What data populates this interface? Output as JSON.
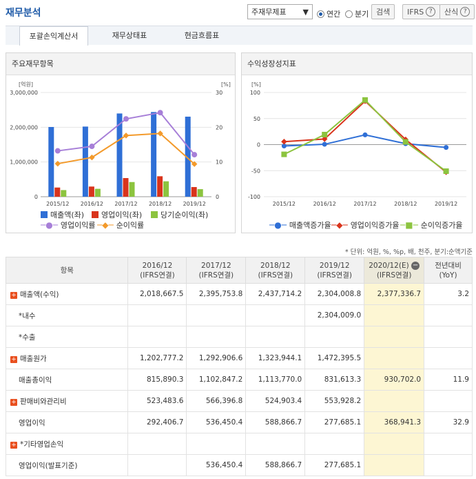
{
  "page_title": "재무분석",
  "controls": {
    "report_select": "주재무제표",
    "radio_annual": "연간",
    "radio_quarter": "분기",
    "search": "검색",
    "ifrs": "IFRS",
    "formula": "산식"
  },
  "tabs": [
    "포괄손익계산서",
    "재무상태표",
    "현금흐름표"
  ],
  "left_chart": {
    "title": "주요재무항목",
    "left_unit": "[억원]",
    "right_unit": "[%]",
    "legend": [
      "매출액(좌)",
      "영업이익(좌)",
      "당기순이익(좌)",
      "영업이익률",
      "순이익률"
    ]
  },
  "right_chart": {
    "title": "수익성장성지표",
    "unit": "[%]",
    "legend": [
      "매출액증가율",
      "영업이익증가율",
      "순이익증가율"
    ]
  },
  "chart_data": [
    {
      "type": "bar",
      "title": "주요재무항목",
      "categories": [
        "2015/12",
        "2016/12",
        "2017/12",
        "2018/12",
        "2019/12"
      ],
      "y_ticks": [
        "0",
        "1,000,000",
        "2,000,000",
        "3,000,000"
      ],
      "y2_ticks": [
        "0",
        "10",
        "20",
        "30"
      ],
      "ylim": [
        0,
        3000000
      ],
      "y2lim": [
        0,
        30
      ],
      "series": [
        {
          "name": "매출액(좌)",
          "kind": "bar",
          "color": "#2f6fd6",
          "values": [
            2006535,
            2018667,
            2395754,
            2437714,
            2304009
          ]
        },
        {
          "name": "영업이익(좌)",
          "kind": "bar",
          "color": "#d9341c",
          "values": [
            264134,
            292407,
            536450,
            588867,
            277685
          ]
        },
        {
          "name": "당기순이익(좌)",
          "kind": "bar",
          "color": "#8cc43f",
          "values": [
            190601,
            227261,
            421867,
            443449,
            217389
          ]
        },
        {
          "name": "영업이익률",
          "kind": "line",
          "color": "#a77fd8",
          "values": [
            13.2,
            14.5,
            22.4,
            24.2,
            12.1
          ]
        },
        {
          "name": "순이익률",
          "kind": "line",
          "color": "#f39a2b",
          "values": [
            9.5,
            11.3,
            17.6,
            18.2,
            9.4
          ]
        }
      ]
    },
    {
      "type": "line",
      "title": "수익성장성지표",
      "categories": [
        "2015/12",
        "2016/12",
        "2017/12",
        "2018/12",
        "2019/12"
      ],
      "y_ticks": [
        "-100",
        "-50",
        "0",
        "50",
        "100"
      ],
      "ylim": [
        -100,
        100
      ],
      "series": [
        {
          "name": "매출액증가율",
          "color": "#2f6fd6",
          "marker": "circle",
          "values": [
            -2.7,
            0.6,
            18.7,
            1.8,
            -5.5
          ]
        },
        {
          "name": "영업이익증가율",
          "color": "#d9341c",
          "marker": "diamond",
          "values": [
            5.6,
            10.7,
            83.5,
            9.8,
            -52.8
          ]
        },
        {
          "name": "순이익증가율",
          "color": "#8cc43f",
          "marker": "square",
          "values": [
            -18.7,
            19.2,
            85.6,
            5.1,
            -51.0
          ]
        }
      ]
    }
  ],
  "table": {
    "unit_note": "* 단위: 억원, %, %p, 배, 천주, 분기:순액기준",
    "headers": [
      {
        "l1": "항목",
        "l2": ""
      },
      {
        "l1": "2016/12",
        "l2": "(IFRS연결)"
      },
      {
        "l1": "2017/12",
        "l2": "(IFRS연결)"
      },
      {
        "l1": "2018/12",
        "l2": "(IFRS연결)"
      },
      {
        "l1": "2019/12",
        "l2": "(IFRS연결)"
      },
      {
        "l1": "2020/12(E)",
        "l2": "(IFRS연결)"
      },
      {
        "l1": "전년대비",
        "l2": "(YoY)"
      }
    ],
    "rows": [
      {
        "label": "매출액(수익)",
        "plus": true,
        "indent": false,
        "cells": [
          "2,018,667.5",
          "2,395,753.8",
          "2,437,714.2",
          "2,304,008.8",
          "2,377,336.7",
          "3.2"
        ]
      },
      {
        "label": "*내수",
        "plus": false,
        "indent": true,
        "cells": [
          "",
          "",
          "",
          "2,304,009.0",
          "",
          ""
        ]
      },
      {
        "label": "*수출",
        "plus": false,
        "indent": true,
        "cells": [
          "",
          "",
          "",
          "",
          "",
          ""
        ]
      },
      {
        "label": "매출원가",
        "plus": true,
        "indent": false,
        "cells": [
          "1,202,777.2",
          "1,292,906.6",
          "1,323,944.1",
          "1,472,395.5",
          "",
          ""
        ]
      },
      {
        "label": "매출총이익",
        "plus": false,
        "indent": true,
        "cells": [
          "815,890.3",
          "1,102,847.2",
          "1,113,770.0",
          "831,613.3",
          "930,702.0",
          "11.9"
        ]
      },
      {
        "label": "판매비와관리비",
        "plus": true,
        "indent": false,
        "cells": [
          "523,483.6",
          "566,396.8",
          "524,903.4",
          "553,928.2",
          "",
          ""
        ]
      },
      {
        "label": "영업이익",
        "plus": false,
        "indent": true,
        "cells": [
          "292,406.7",
          "536,450.4",
          "588,866.7",
          "277,685.1",
          "368,941.3",
          "32.9"
        ]
      },
      {
        "label": "*기타영업손익",
        "plus": true,
        "indent": false,
        "cells": [
          "",
          "",
          "",
          "",
          "",
          ""
        ]
      },
      {
        "label": "영업이익(발표기준)",
        "plus": false,
        "indent": true,
        "cells": [
          "",
          "536,450.4",
          "588,866.7",
          "277,685.1",
          "",
          ""
        ]
      }
    ]
  }
}
